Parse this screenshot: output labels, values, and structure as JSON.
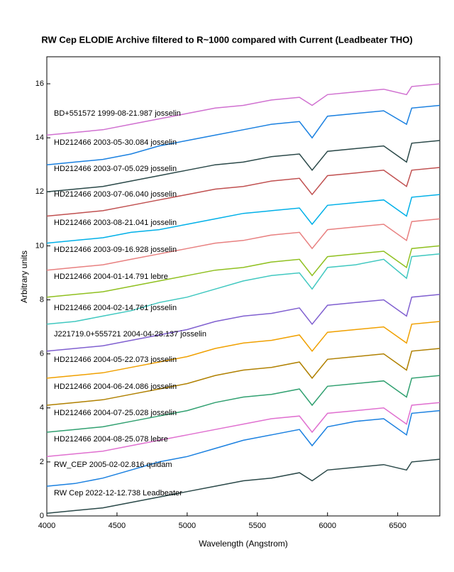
{
  "chart_data": {
    "type": "line",
    "title": "RW Cep   ELODIE Archive filtered to R~1000  compared with Current (Leadbeater THO)",
    "x_label": "Wavelength (Angstrom)",
    "y_label": "Arbitrary units",
    "x": [
      4000,
      4200,
      4400,
      4600,
      4800,
      5000,
      5200,
      5400,
      5600,
      5800,
      5890,
      6000,
      6200,
      6400,
      6563,
      6600,
      6800
    ],
    "xlim": [
      4000,
      6800
    ],
    "xticks": [
      4000,
      4500,
      5000,
      5500,
      6000,
      6500
    ],
    "ylim": [
      0,
      17
    ],
    "yticks": [
      0,
      2,
      4,
      6,
      8,
      10,
      12,
      14,
      16
    ],
    "series": [
      {
        "name": "BD+551572  1999-08-21.987  josselin",
        "color": "#d070d0",
        "values": [
          14.1,
          14.2,
          14.3,
          14.5,
          14.7,
          14.9,
          15.1,
          15.2,
          15.4,
          15.5,
          15.2,
          15.6,
          15.7,
          15.8,
          15.6,
          15.9,
          16.0
        ]
      },
      {
        "name": "HD212466  2003-05-30.084  josselin",
        "color": "#1a80e0",
        "values": [
          13.0,
          13.1,
          13.2,
          13.4,
          13.7,
          13.9,
          14.1,
          14.3,
          14.5,
          14.6,
          14.0,
          14.8,
          14.9,
          15.0,
          14.5,
          15.1,
          15.2
        ]
      },
      {
        "name": "HD212466  2003-07-05.029  josselin",
        "color": "#2a4848",
        "values": [
          12.0,
          12.1,
          12.2,
          12.4,
          12.6,
          12.8,
          13.0,
          13.1,
          13.3,
          13.4,
          12.8,
          13.5,
          13.6,
          13.7,
          13.1,
          13.8,
          13.9
        ]
      },
      {
        "name": "HD212466  2003-07-06.040  josselin",
        "color": "#c05050",
        "values": [
          11.1,
          11.2,
          11.3,
          11.5,
          11.7,
          11.9,
          12.1,
          12.2,
          12.4,
          12.5,
          11.9,
          12.6,
          12.7,
          12.8,
          12.2,
          12.8,
          12.9
        ]
      },
      {
        "name": "HD212466  2003-08-21.041  josselin",
        "color": "#00b0e8",
        "values": [
          10.1,
          10.2,
          10.3,
          10.5,
          10.6,
          10.8,
          11.0,
          11.2,
          11.3,
          11.4,
          10.8,
          11.5,
          11.6,
          11.7,
          11.1,
          11.8,
          11.9
        ]
      },
      {
        "name": "HD212466  2003-09-16.928  josselin",
        "color": "#e88080",
        "values": [
          9.1,
          9.2,
          9.3,
          9.5,
          9.7,
          9.9,
          10.1,
          10.2,
          10.4,
          10.5,
          9.9,
          10.6,
          10.7,
          10.8,
          10.2,
          10.9,
          11.0
        ]
      },
      {
        "name": "HD212466  2004-01-14.791  lebre",
        "color": "#90c020",
        "values": [
          8.1,
          8.2,
          8.3,
          8.5,
          8.7,
          8.9,
          9.1,
          9.2,
          9.4,
          9.5,
          8.9,
          9.6,
          9.7,
          9.8,
          9.2,
          9.9,
          10.0
        ]
      },
      {
        "name": "HD212466  2004-02-14.761  josselin",
        "color": "#40c8c0",
        "values": [
          7.1,
          7.2,
          7.4,
          7.6,
          7.9,
          8.1,
          8.4,
          8.7,
          8.9,
          9.0,
          8.4,
          9.2,
          9.3,
          9.5,
          8.8,
          9.6,
          9.7
        ]
      },
      {
        "name": "J221719.0+555721  2004-04-28.137  josselin",
        "color": "#8060d0",
        "values": [
          6.1,
          6.2,
          6.3,
          6.5,
          6.7,
          6.9,
          7.2,
          7.4,
          7.5,
          7.7,
          7.1,
          7.8,
          7.9,
          8.0,
          7.4,
          8.1,
          8.2
        ]
      },
      {
        "name": "HD212466  2004-05-22.073  josselin",
        "color": "#f0a000",
        "values": [
          5.1,
          5.2,
          5.3,
          5.5,
          5.7,
          5.9,
          6.2,
          6.4,
          6.5,
          6.7,
          6.1,
          6.8,
          6.9,
          7.0,
          6.4,
          7.1,
          7.2
        ]
      },
      {
        "name": "HD212466  2004-06-24.086  josselin",
        "color": "#b08000",
        "values": [
          4.1,
          4.2,
          4.3,
          4.5,
          4.7,
          4.9,
          5.2,
          5.4,
          5.5,
          5.7,
          5.1,
          5.8,
          5.9,
          6.0,
          5.4,
          6.1,
          6.2
        ]
      },
      {
        "name": "HD212466  2004-07-25.028  josselin",
        "color": "#30a070",
        "values": [
          3.1,
          3.2,
          3.3,
          3.5,
          3.7,
          3.9,
          4.2,
          4.4,
          4.5,
          4.7,
          4.1,
          4.8,
          4.9,
          5.0,
          4.4,
          5.1,
          5.2
        ]
      },
      {
        "name": "HD212466  2004-08-25.078  lebre",
        "color": "#e070d0",
        "values": [
          2.2,
          2.3,
          2.4,
          2.6,
          2.8,
          3.0,
          3.2,
          3.4,
          3.6,
          3.7,
          3.1,
          3.8,
          3.9,
          4.0,
          3.4,
          4.1,
          4.2
        ]
      },
      {
        "name": "RW_CEP  2005-02-02.816  quidam",
        "color": "#1a80e0",
        "values": [
          1.1,
          1.2,
          1.4,
          1.7,
          2.0,
          2.2,
          2.5,
          2.8,
          3.0,
          3.2,
          2.6,
          3.3,
          3.5,
          3.6,
          3.0,
          3.8,
          3.9
        ]
      },
      {
        "name": "RW Cep  2022-12-12.738  Leadbeater",
        "color": "#2a4848",
        "values": [
          0.1,
          0.2,
          0.3,
          0.5,
          0.7,
          0.9,
          1.1,
          1.3,
          1.4,
          1.6,
          1.3,
          1.7,
          1.8,
          1.9,
          1.7,
          2.0,
          2.1
        ]
      }
    ]
  }
}
